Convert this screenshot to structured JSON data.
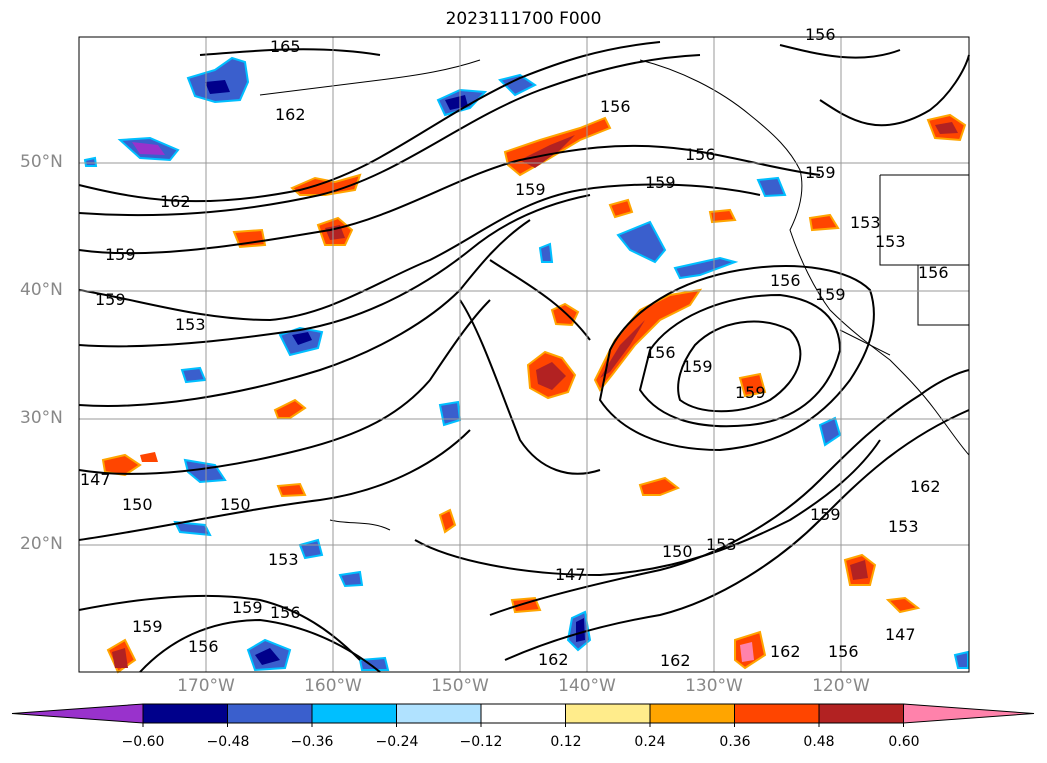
{
  "title": "2023111700 F000",
  "lat_labels": [
    "50°N",
    "40°N",
    "30°N",
    "20°N"
  ],
  "lon_labels": [
    "170°W",
    "160°W",
    "150°W",
    "140°W",
    "130°W",
    "120°W"
  ],
  "contour_labels": [
    "165",
    "162",
    "162",
    "159",
    "159",
    "153",
    "159",
    "156",
    "156",
    "159",
    "159",
    "153",
    "153",
    "156",
    "156",
    "159",
    "156",
    "159",
    "159",
    "147",
    "150",
    "150",
    "153",
    "147",
    "150",
    "153",
    "159",
    "156",
    "159",
    "156",
    "162",
    "162",
    "162",
    "156",
    "162",
    "159",
    "153",
    "156",
    "147"
  ],
  "colorbar": {
    "ticks": [
      "−0.60",
      "−0.48",
      "−0.36",
      "−0.24",
      "−0.12",
      "0.12",
      "0.24",
      "0.36",
      "0.48",
      "0.60"
    ],
    "colors": [
      "#9932cc",
      "#00008b",
      "#3a5fcd",
      "#00bfff",
      "#b0e2ff",
      "#ffffff",
      "#ffec8b",
      "#ffa500",
      "#ff4500",
      "#b22222",
      "#ff82ab"
    ]
  },
  "colors": {
    "land_line": "#000000",
    "grid": "#999999"
  }
}
